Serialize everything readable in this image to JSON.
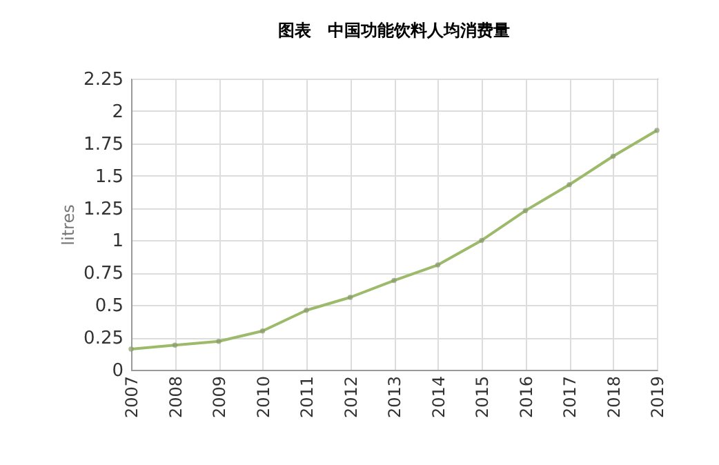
{
  "chart_data": {
    "type": "line",
    "title": "图表　中国功能饮料人均消费量",
    "ylabel": "litres",
    "categories": [
      "2007",
      "2008",
      "2009",
      "2010",
      "2011",
      "2012",
      "2013",
      "2014",
      "2015",
      "2016",
      "2017",
      "2018",
      "2019"
    ],
    "series": [
      {
        "color": "#9cba6a",
        "values": [
          0.16,
          0.19,
          0.22,
          0.3,
          0.46,
          0.56,
          0.69,
          0.81,
          1.0,
          1.23,
          1.43,
          1.65,
          1.85
        ]
      }
    ],
    "ylim": [
      0,
      2.25
    ],
    "yticks": [
      0,
      0.25,
      0.5,
      0.75,
      1,
      1.25,
      1.5,
      1.75,
      2,
      2.25
    ],
    "grid": true,
    "marker": "circle",
    "line_style": "solid"
  }
}
